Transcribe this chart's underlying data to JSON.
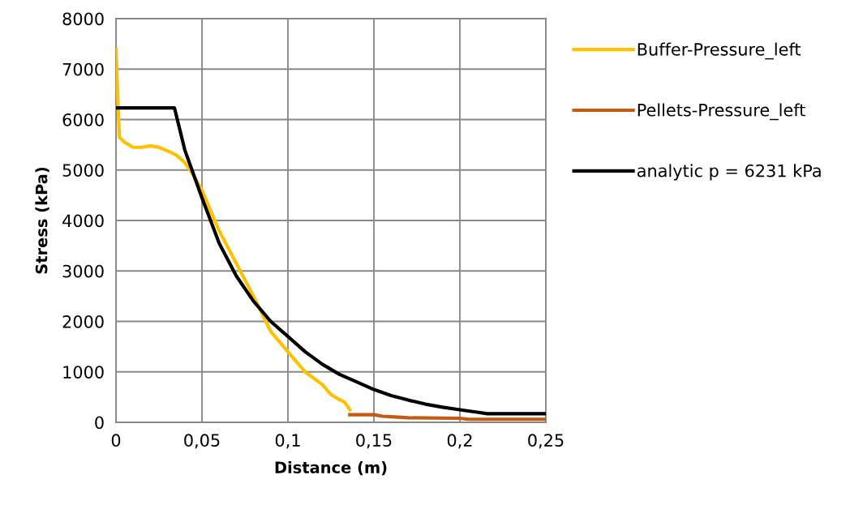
{
  "chart_data": {
    "type": "line",
    "xlabel": "Distance (m)",
    "ylabel": "Stress (kPa)",
    "xlim": [
      0,
      0.25
    ],
    "ylim": [
      0,
      8000
    ],
    "xticks": [
      {
        "value": 0,
        "label": "0"
      },
      {
        "value": 0.05,
        "label": "0,05"
      },
      {
        "value": 0.1,
        "label": "0,1"
      },
      {
        "value": 0.15,
        "label": "0,15"
      },
      {
        "value": 0.2,
        "label": "0,2"
      },
      {
        "value": 0.25,
        "label": "0,25"
      }
    ],
    "yticks": [
      0,
      1000,
      2000,
      3000,
      4000,
      5000,
      6000,
      7000,
      8000
    ],
    "grid": true,
    "legend": "right",
    "marker": "none",
    "line_style": "solid",
    "series": [
      {
        "name": "Buffer-Pressure_left",
        "color": "#ffc000",
        "x": [
          0,
          0.001,
          0.002,
          0.005,
          0.01,
          0.015,
          0.02,
          0.025,
          0.03,
          0.035,
          0.04,
          0.045,
          0.05,
          0.06,
          0.07,
          0.08,
          0.085,
          0.09,
          0.1,
          0.11,
          0.12,
          0.125,
          0.13,
          0.133,
          0.136
        ],
        "values": [
          7400,
          6500,
          5650,
          5550,
          5450,
          5450,
          5480,
          5450,
          5380,
          5300,
          5150,
          4900,
          4600,
          3800,
          3150,
          2500,
          2150,
          1800,
          1400,
          1000,
          750,
          550,
          450,
          400,
          250
        ]
      },
      {
        "name": "Pellets-Pressure_left",
        "color": "#c55a11",
        "x": [
          0.136,
          0.15,
          0.155,
          0.16,
          0.17,
          0.2,
          0.205,
          0.25
        ],
        "values": [
          150,
          150,
          120,
          110,
          90,
          80,
          60,
          60
        ]
      },
      {
        "name": "analytic p = 6231 kPa",
        "color": "#000000",
        "x": [
          0,
          0.034,
          0.04,
          0.05,
          0.06,
          0.07,
          0.08,
          0.09,
          0.1,
          0.11,
          0.12,
          0.13,
          0.14,
          0.15,
          0.16,
          0.17,
          0.18,
          0.19,
          0.2,
          0.21,
          0.216,
          0.25
        ],
        "values": [
          6231,
          6231,
          5400,
          4450,
          3550,
          2900,
          2400,
          2000,
          1700,
          1400,
          1150,
          950,
          800,
          650,
          530,
          440,
          360,
          300,
          250,
          200,
          170,
          170
        ]
      }
    ]
  }
}
